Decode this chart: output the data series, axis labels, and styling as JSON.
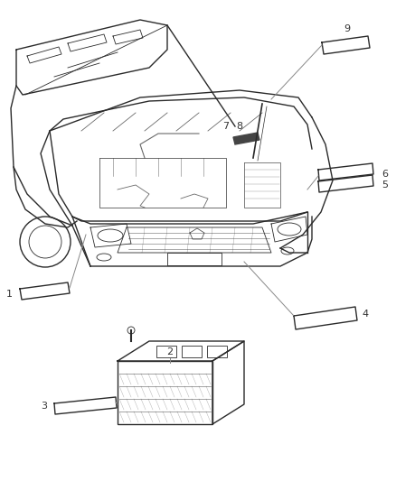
{
  "bg_color": "#ffffff",
  "line_color": "#2a2a2a",
  "gray_color": "#888888",
  "fig_width": 4.38,
  "fig_height": 5.33,
  "dpi": 100
}
